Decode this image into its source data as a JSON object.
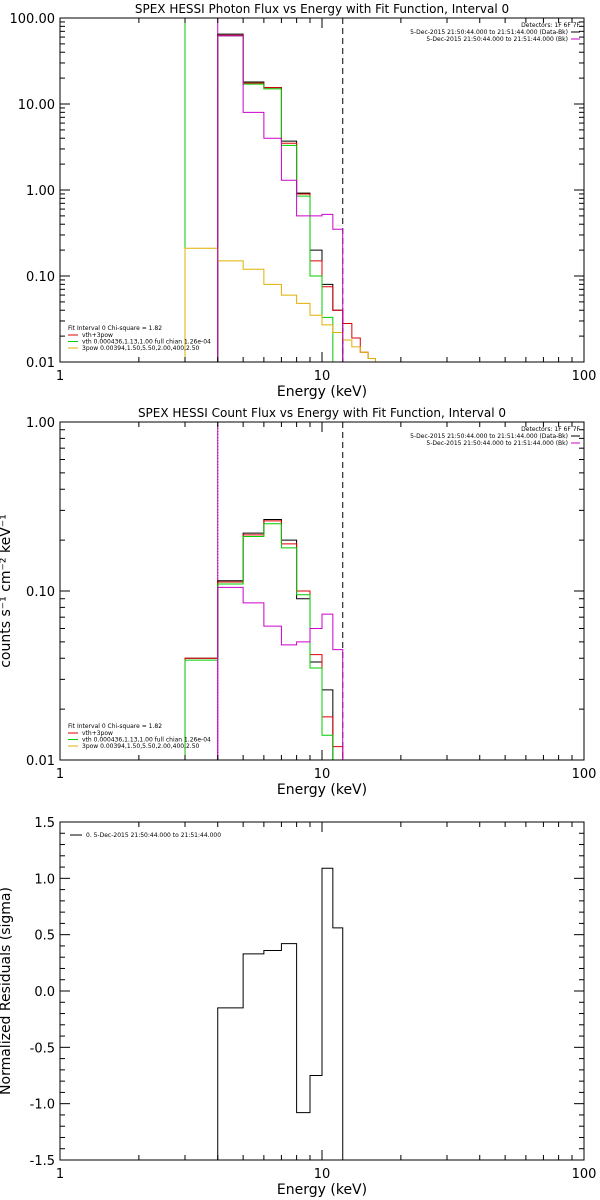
{
  "chart_data": [
    {
      "type": "line",
      "title": "SPEX HESSI Photon Flux vs Energy with Fit Function, Interval 0",
      "xlabel": "Energy (keV)",
      "ylabel": "",
      "xscale": "log",
      "yscale": "log",
      "xlim": [
        1,
        100
      ],
      "ylim": [
        0.01,
        100
      ],
      "x_ticks": [
        "1",
        "10",
        "100"
      ],
      "y_ticks": [
        "0.01",
        "0.10",
        "1.00",
        "10.00",
        "100.00"
      ],
      "detectors_text": "Detectors: 1F 6F 7F",
      "legend_right": [
        {
          "text": "5-Dec-2015 21:50:44.000 to 21:51:44.000 (Data-Bk)",
          "color": "#000000"
        },
        {
          "text": "5-Dec-2015 21:50:44.000 to 21:51:44.000 (Bk)",
          "color": "#cc00cc"
        }
      ],
      "legend_left_header": "Fit Interval 0   Chi-square = 1.82",
      "legend_left": [
        {
          "text": "vth+3pow",
          "color": "#dd0000"
        },
        {
          "text": "vth 0.000436,1.13,1.00  full chian 1.26e-04",
          "color": "#00cc00"
        },
        {
          "text": "3pow 0.00394,1.50,5.50,2.00,400,2.50",
          "color": "#e0b000"
        }
      ],
      "vlines": [
        {
          "x": 3.0,
          "style": "solid",
          "color": "#00cc00"
        },
        {
          "x": 4.0,
          "style": "solid",
          "color": "#cc00cc"
        },
        {
          "x": 12.0,
          "style": "dashed",
          "color": "#000000"
        }
      ],
      "series": [
        {
          "name": "Data-Bk",
          "color": "#000000",
          "edges": [
            4,
            5,
            6,
            7,
            8,
            9,
            10,
            11,
            12
          ],
          "values": [
            65,
            18,
            15.5,
            3.7,
            0.92,
            0.2,
            0.08,
            0.04
          ]
        },
        {
          "name": "vth+3pow",
          "color": "#dd0000",
          "edges": [
            4,
            5,
            6,
            7,
            8,
            9,
            10,
            11,
            12,
            13,
            14,
            15,
            16,
            17
          ],
          "values": [
            63,
            17.5,
            15.5,
            3.5,
            0.9,
            0.15,
            0.075,
            0.04,
            0.028,
            0.019,
            0.013,
            0.011,
            0.01
          ]
        },
        {
          "name": "vth",
          "color": "#00cc00",
          "edges": [
            3,
            4,
            5,
            6,
            7,
            8,
            9,
            10,
            11,
            12
          ],
          "values": [
            0.01,
            62,
            17,
            15,
            3.3,
            0.85,
            0.1,
            0.033,
            0.01
          ]
        },
        {
          "name": "3pow",
          "color": "#e0b000",
          "edges": [
            3,
            4,
            5,
            6,
            7,
            8,
            9,
            10,
            11,
            12,
            13,
            14,
            15,
            16,
            17
          ],
          "values": [
            0.21,
            0.15,
            0.12,
            0.08,
            0.06,
            0.048,
            0.035,
            0.027,
            0.022,
            0.018,
            0.015,
            0.013,
            0.011,
            0.01
          ]
        },
        {
          "name": "Bk",
          "color": "#cc00cc",
          "edges": [
            4,
            5,
            6,
            7,
            8,
            9,
            10,
            11,
            12
          ],
          "values": [
            62,
            8,
            4,
            1.3,
            0.5,
            0.5,
            0.52,
            0.35
          ]
        }
      ]
    },
    {
      "type": "line",
      "title": "SPEX HESSI Count Flux vs Energy with Fit Function, Interval 0",
      "xlabel": "Energy (keV)",
      "ylabel": "counts s⁻¹ cm⁻² keV⁻¹",
      "xscale": "log",
      "yscale": "log",
      "xlim": [
        1,
        100
      ],
      "ylim": [
        0.01,
        1
      ],
      "x_ticks": [
        "1",
        "10",
        "100"
      ],
      "y_ticks": [
        "0.01",
        "0.10",
        "1.00"
      ],
      "detectors_text": "Detectors: 1F 6F 7F",
      "legend_right": [
        {
          "text": "5-Dec-2015 21:50:44.000 to 21:51:44.000 (Data-Bk)",
          "color": "#000000"
        },
        {
          "text": "5-Dec-2015 21:50:44.000 to 21:51:44.000 (Bk)",
          "color": "#cc00cc"
        }
      ],
      "legend_left_header": "Fit Interval 0   Chi-square = 1.82",
      "legend_left": [
        {
          "text": "vth+3pow",
          "color": "#dd0000"
        },
        {
          "text": "vth 0.000436,1.13,1.00  full chian 1.26e-04",
          "color": "#00cc00"
        },
        {
          "text": "3pow 0.00394,1.50,5.50,2.00,400,2.50",
          "color": "#e0b000"
        }
      ],
      "vlines": [
        {
          "x": 4.0,
          "style": "dotted",
          "color": "#000000"
        },
        {
          "x": 4.0,
          "style": "solid",
          "color": "#cc00cc"
        },
        {
          "x": 12.0,
          "style": "dashed",
          "color": "#000000"
        }
      ],
      "series": [
        {
          "name": "Data-Bk",
          "color": "#000000",
          "edges": [
            3,
            4,
            5,
            6,
            7,
            8,
            9,
            10,
            11,
            12
          ],
          "values": [
            0.04,
            0.115,
            0.22,
            0.265,
            0.2,
            0.09,
            0.038,
            0.026,
            0.01
          ]
        },
        {
          "name": "vth+3pow",
          "color": "#dd0000",
          "edges": [
            3,
            4,
            5,
            6,
            7,
            8,
            9,
            10,
            11,
            12
          ],
          "values": [
            0.04,
            0.113,
            0.215,
            0.26,
            0.19,
            0.1,
            0.042,
            0.018,
            0.012
          ]
        },
        {
          "name": "vth",
          "color": "#00cc00",
          "edges": [
            3,
            4,
            5,
            6,
            7,
            8,
            9,
            10,
            11,
            12
          ],
          "values": [
            0.039,
            0.11,
            0.21,
            0.25,
            0.18,
            0.095,
            0.035,
            0.014,
            0.01
          ]
        },
        {
          "name": "Bk",
          "color": "#cc00cc",
          "edges": [
            4,
            5,
            6,
            7,
            8,
            9,
            10,
            11,
            12
          ],
          "values": [
            0.105,
            0.085,
            0.062,
            0.048,
            0.05,
            0.06,
            0.073,
            0.045
          ]
        }
      ]
    },
    {
      "type": "line",
      "title": "",
      "xlabel": "Energy (keV)",
      "ylabel": "Normalized Residuals (sigma)",
      "xscale": "log",
      "yscale": "linear",
      "xlim": [
        1,
        100
      ],
      "ylim": [
        -1.5,
        1.5
      ],
      "x_ticks": [
        "1",
        "10",
        "100"
      ],
      "y_ticks": [
        "-1.5",
        "-1.0",
        "-0.5",
        "0.0",
        "0.5",
        "1.0",
        "1.5"
      ],
      "legend_right": [
        {
          "text": "0. 5-Dec-2015 21:50:44.000 to 21:51:44.000",
          "color": "#000000"
        }
      ],
      "series": [
        {
          "name": "0",
          "color": "#000000",
          "edges": [
            4,
            5,
            6,
            7,
            8,
            9,
            10,
            11,
            12
          ],
          "values": [
            -0.15,
            0.33,
            0.36,
            0.42,
            -1.08,
            -0.75,
            1.09,
            0.56
          ]
        }
      ]
    }
  ]
}
